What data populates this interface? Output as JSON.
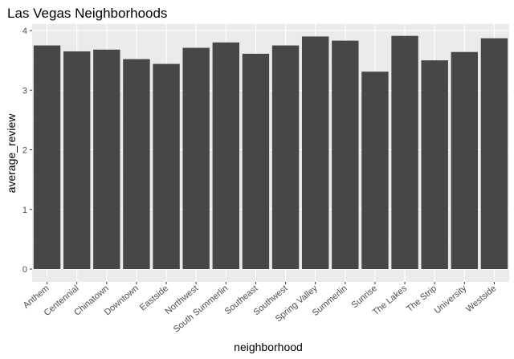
{
  "chart_data": {
    "type": "bar",
    "title": "Las Vegas Neighborhoods",
    "xlabel": "neighborhood",
    "ylabel": "average_review",
    "categories": [
      "Anthem",
      "Centennial",
      "Chinatown",
      "Downtown",
      "Eastside",
      "Northwest",
      "South Summerlin",
      "Southeast",
      "Southwest",
      "Spring Valley",
      "Summerlin",
      "Sunrise",
      "The Lakes",
      "The Strip",
      "University",
      "Westside"
    ],
    "values": [
      3.75,
      3.65,
      3.68,
      3.52,
      3.44,
      3.71,
      3.8,
      3.61,
      3.75,
      3.9,
      3.83,
      3.31,
      3.91,
      3.5,
      3.64,
      3.87
    ],
    "ylim": [
      0,
      4.1
    ],
    "yticks": [
      0,
      1,
      2,
      3,
      4
    ],
    "grid": true,
    "colors": {
      "bar": "#474747",
      "panel": "#ebebeb"
    }
  }
}
